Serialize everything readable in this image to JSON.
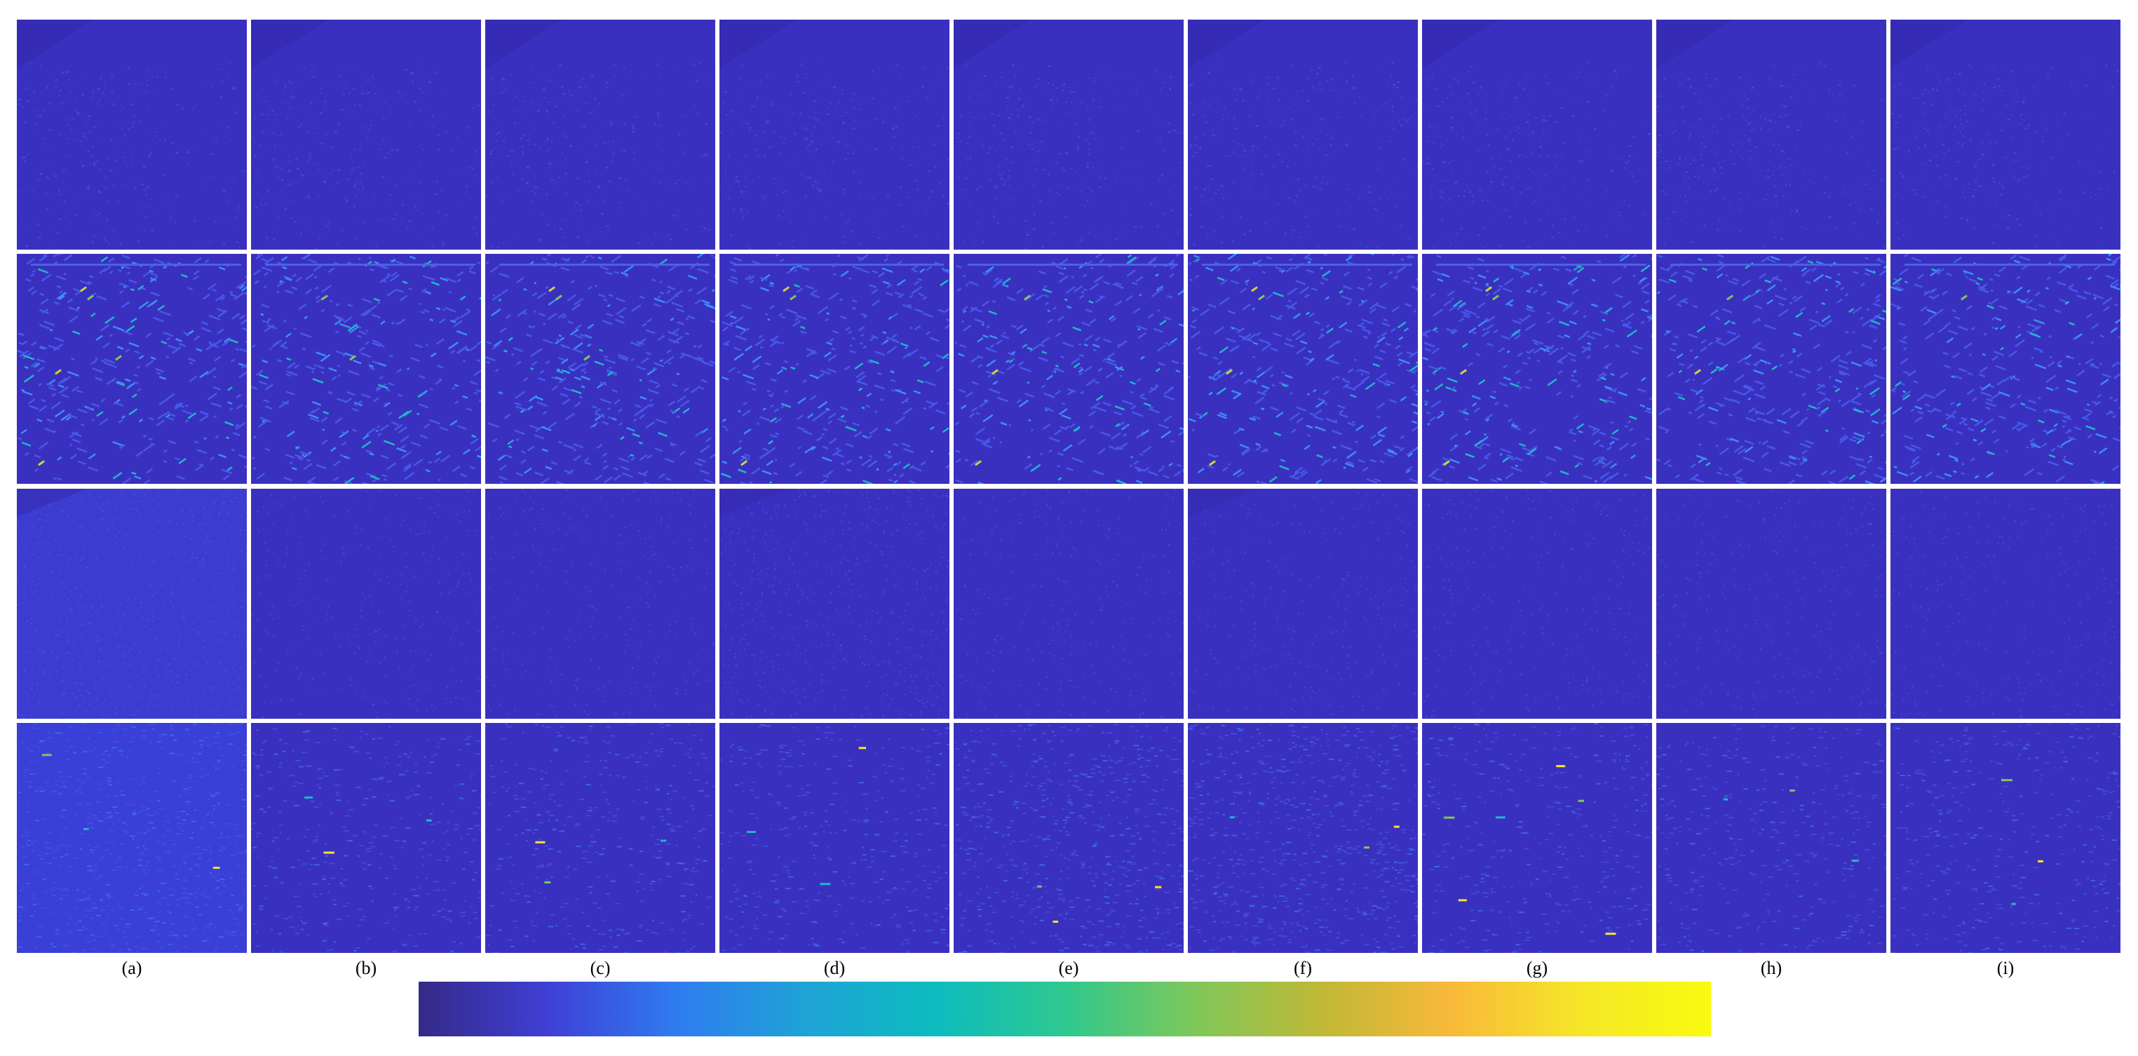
{
  "figure": {
    "column_labels": [
      "(a)",
      "(b)",
      "(c)",
      "(d)",
      "(e)",
      "(f)",
      "(g)",
      "(h)",
      "(i)"
    ],
    "rows": 4,
    "rows_content": [
      "error map, low intensity, faint urban texture",
      "error map, building edges highlighted",
      "error map, diffuse noise",
      "error map, scattered bright spots"
    ],
    "colormap": {
      "name": "parula",
      "stops": [
        "#352a87",
        "#3f3fd6",
        "#2f7cf0",
        "#1fa3d6",
        "#0cbcbf",
        "#2fc88f",
        "#7ec85a",
        "#c1b836",
        "#f9b93a",
        "#f5e728",
        "#f9fb0e"
      ]
    },
    "panel_background": "#3a30bf"
  }
}
